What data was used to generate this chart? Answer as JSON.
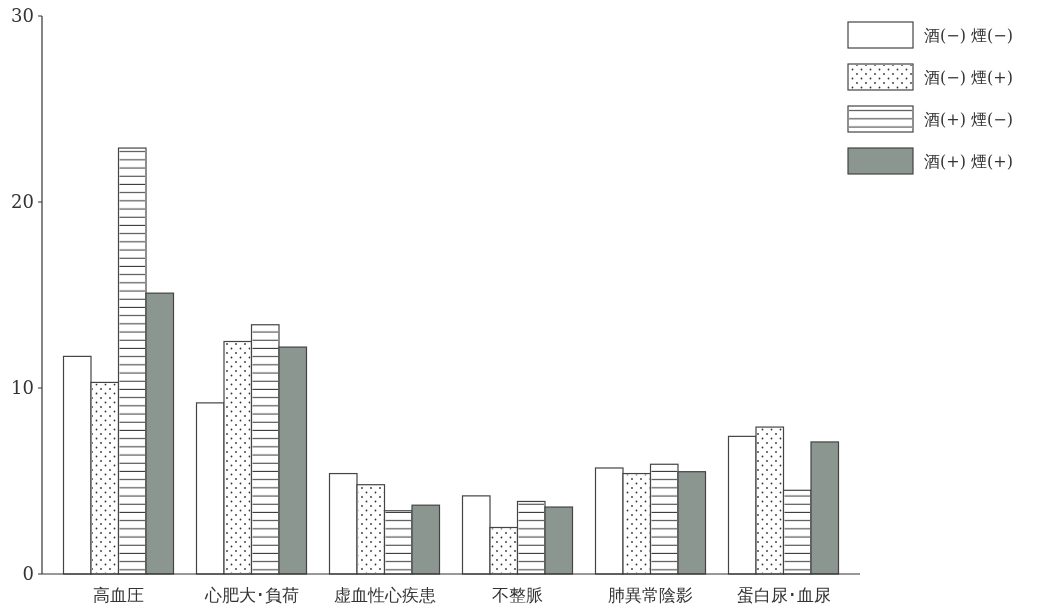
{
  "chart_data": {
    "type": "bar",
    "categories": [
      "高血圧",
      "心肥大･負荷",
      "虚血性心疾患",
      "不整脈",
      "肺異常陰影",
      "蛋白尿･血尿"
    ],
    "series": [
      {
        "name": "酒(−) 煙(−)",
        "color": "#ffffff",
        "values": [
          11.7,
          9.2,
          5.4,
          4.2,
          5.7,
          7.4
        ]
      },
      {
        "name": "酒(−) 煙(+)",
        "color": "#ffffff",
        "values": [
          10.3,
          12.5,
          4.8,
          2.5,
          5.4,
          7.9
        ]
      },
      {
        "name": "酒(+) 煙(−)",
        "color": "#ffffff",
        "values": [
          22.9,
          13.4,
          3.4,
          3.9,
          5.9,
          4.5
        ]
      },
      {
        "name": "酒(+) 煙(+)",
        "color": "#8c9690",
        "values": [
          15.1,
          12.2,
          3.7,
          3.6,
          5.5,
          7.1
        ]
      }
    ],
    "ylim": [
      0,
      30
    ],
    "yticks": [
      0,
      10,
      20,
      30
    ],
    "legend": "top right",
    "grid": false
  }
}
